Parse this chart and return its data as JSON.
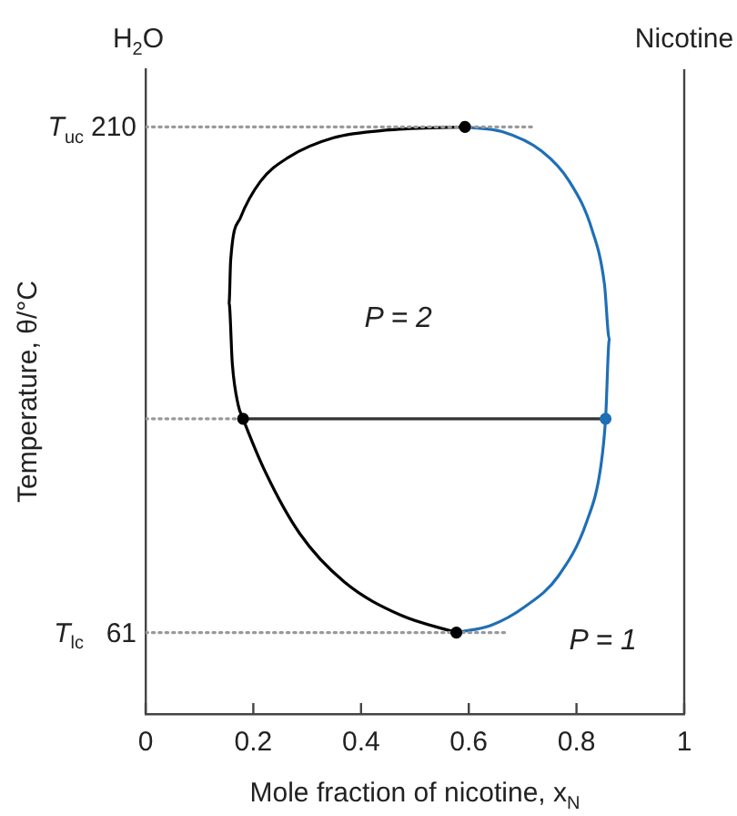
{
  "chart_data": {
    "type": "line",
    "xlabel": "Mole fraction of nicotine, x$_{N}$",
    "ylabel": "Temperature, θ/°C",
    "xlim": [
      0,
      1
    ],
    "xticks": [
      0,
      0.2,
      0.4,
      0.6,
      0.8,
      1
    ],
    "ylim": [
      37,
      227
    ],
    "yticks": [
      61,
      210
    ],
    "marker": "none",
    "line_style": "solid",
    "series": [
      {
        "type": "line",
        "color": "#999999",
        "line_style": "dotted",
        "x": [
          0,
          0.72
        ],
        "values": [
          210,
          210
        ]
      },
      {
        "type": "line",
        "color": "#999999",
        "line_style": "dotted",
        "x": [
          0,
          0.181
        ],
        "values": [
          124,
          124
        ]
      },
      {
        "type": "line",
        "color": "#999999",
        "line_style": "dotted",
        "x": [
          0,
          0.67
        ],
        "values": [
          61,
          61
        ]
      },
      {
        "type": "line",
        "color": "#000000",
        "x": [
          0.593,
          0.453,
          0.349,
          0.265,
          0.213,
          0.176,
          0.158,
          0.155,
          0.161,
          0.172,
          0.181,
          0.223,
          0.286,
          0.369,
          0.474,
          0.577
        ],
        "values": [
          210,
          209.1,
          206.8,
          201,
          193.9,
          183.2,
          170.8,
          158.1,
          140.3,
          128,
          124,
          108.1,
          90.2,
          75.9,
          66.1,
          61
        ]
      },
      {
        "type": "line",
        "color": "#1f6fb5",
        "x": [
          0.593,
          0.662,
          0.735,
          0.787,
          0.829,
          0.852,
          0.861,
          0.854,
          0.845,
          0.819,
          0.766,
          0.704,
          0.641,
          0.577
        ],
        "values": [
          210,
          208.6,
          202.9,
          193.9,
          179.6,
          163.5,
          147.4,
          124,
          109.8,
          93.7,
          77.6,
          68.6,
          63.1,
          61
        ]
      },
      {
        "type": "line",
        "color": "#333333",
        "x": [
          0.181,
          0.854
        ],
        "values": [
          124,
          124
        ]
      },
      {
        "type": "scatter",
        "color": "#000000",
        "marker": "circle",
        "colors": [
          "#000000",
          "#000000",
          "#1f6fb5",
          "#000000"
        ],
        "x": [
          0.593,
          0.181,
          0.854,
          0.577
        ],
        "values": [
          210,
          124,
          124,
          61
        ]
      }
    ],
    "annotations": [
      "H$_{2}$O",
      "Nicotine",
      "P = 2",
      "P = 1",
      {
        "text": "T$_{uc}$",
        "x": 0,
        "y": 210
      },
      {
        "text": "T$_{lc}$",
        "x": 0,
        "y": 61
      }
    ]
  }
}
